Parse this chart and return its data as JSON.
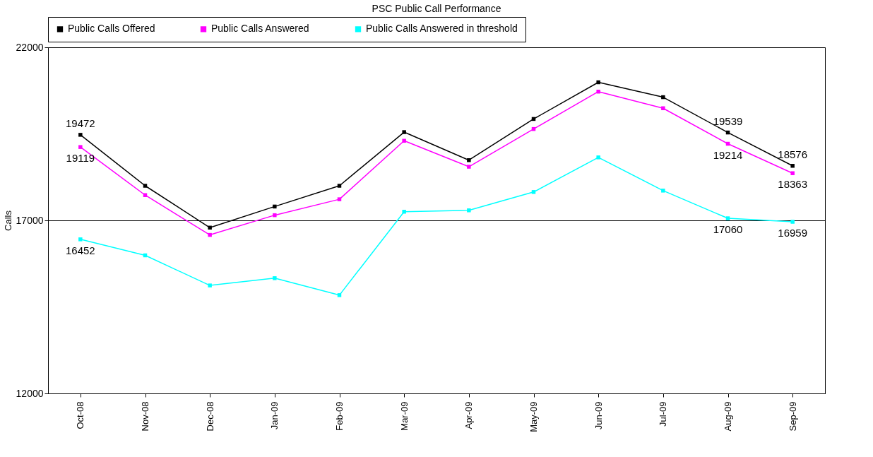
{
  "chart_data": {
    "type": "line",
    "title": "PSC Public Call Performance",
    "ylabel": "Calls",
    "categories": [
      "Oct-08",
      "Nov-08",
      "Dec-08",
      "Jan-09",
      "Feb-09",
      "Mar-09",
      "Apr-09",
      "May-09",
      "Jun-09",
      "Jul-09",
      "Aug-09",
      "Sep-09"
    ],
    "series": [
      {
        "name": "Public Calls Offered",
        "color": "#000000",
        "values": [
          19472,
          18000,
          16790,
          17400,
          18000,
          19550,
          18740,
          19930,
          20990,
          20560,
          19539,
          18576
        ],
        "value_labels": [
          "19472",
          null,
          null,
          null,
          null,
          null,
          null,
          null,
          null,
          null,
          "19539",
          "18576"
        ]
      },
      {
        "name": "Public Calls Answered",
        "color": "#ff00ff",
        "values": [
          19119,
          17730,
          16580,
          17150,
          17610,
          19300,
          18550,
          19640,
          20720,
          20240,
          19214,
          18363
        ],
        "value_labels": [
          "19119",
          null,
          null,
          null,
          null,
          null,
          null,
          null,
          null,
          null,
          "19214",
          "18363"
        ]
      },
      {
        "name": "Public Calls Answered in threshold",
        "color": "#00ffff",
        "values": [
          16452,
          15990,
          15120,
          15330,
          14840,
          17250,
          17290,
          17820,
          18820,
          17860,
          17060,
          16959
        ],
        "value_labels": [
          "16452",
          null,
          null,
          null,
          null,
          null,
          null,
          null,
          null,
          null,
          "17060",
          "16959"
        ]
      }
    ],
    "ylim": [
      12000,
      22000
    ],
    "yticks": [
      12000,
      17000,
      22000
    ],
    "grid": "y",
    "legend": "top",
    "marker": "square",
    "line_style": "solid"
  }
}
